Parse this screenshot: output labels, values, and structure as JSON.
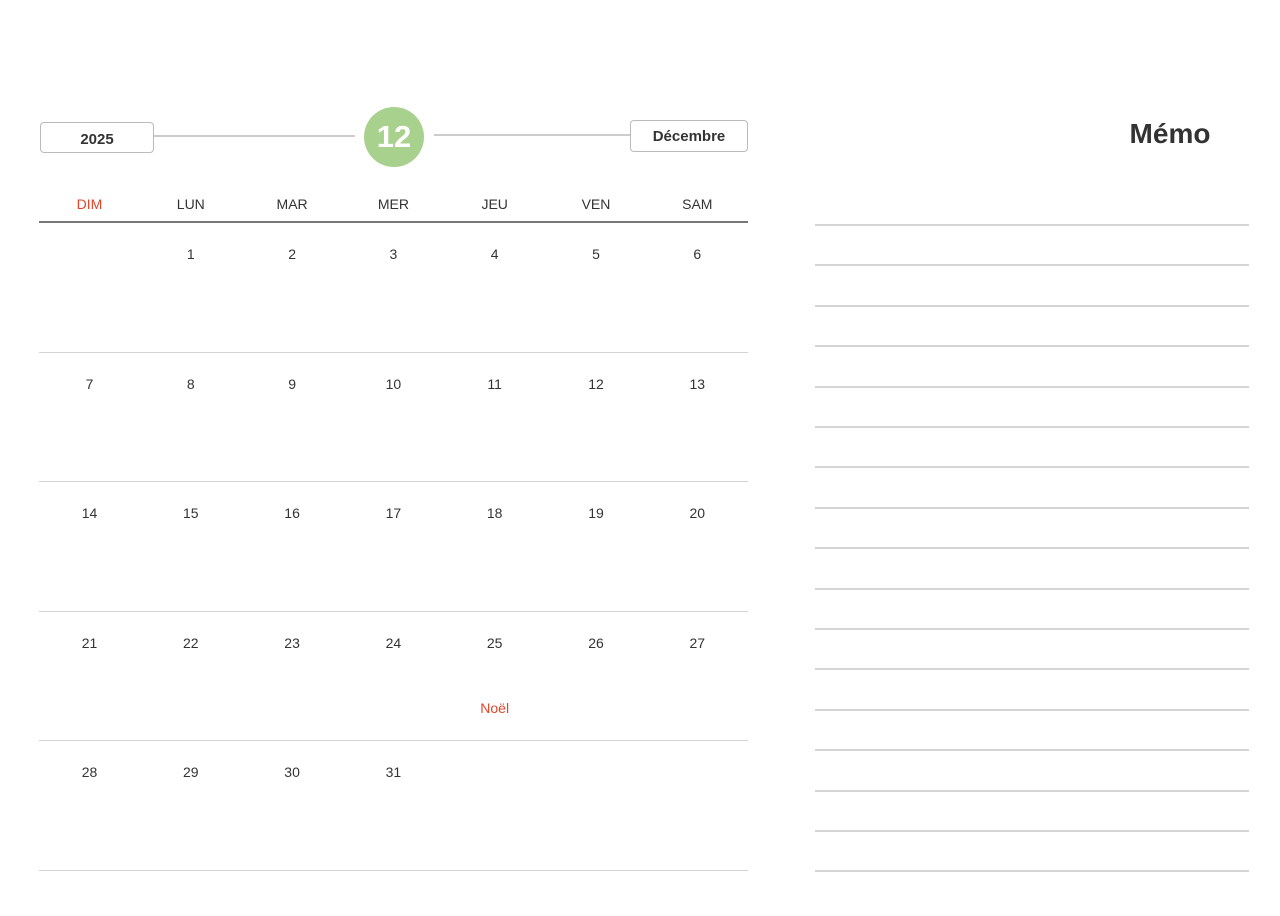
{
  "header": {
    "year": "2025",
    "month_number": "12",
    "month_name": "Décembre",
    "accent_color": "#a9d18e",
    "sunday_color": "#e0452b"
  },
  "weekdays": [
    "DIM",
    "LUN",
    "MAR",
    "MER",
    "JEU",
    "VEN",
    "SAM"
  ],
  "weeks": [
    [
      "",
      "1",
      "2",
      "3",
      "4",
      "5",
      "6"
    ],
    [
      "7",
      "8",
      "9",
      "10",
      "11",
      "12",
      "13"
    ],
    [
      "14",
      "15",
      "16",
      "17",
      "18",
      "19",
      "20"
    ],
    [
      "21",
      "22",
      "23",
      "24",
      "25",
      "26",
      "27"
    ],
    [
      "28",
      "29",
      "30",
      "31",
      "",
      "",
      ""
    ]
  ],
  "holidays": [
    {
      "day": "25",
      "label": "Noël"
    }
  ],
  "memo": {
    "title": "Mémo",
    "line_count": 17
  }
}
